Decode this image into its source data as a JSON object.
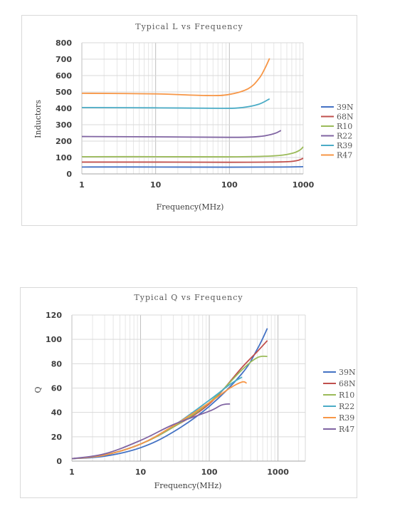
{
  "chart_data": [
    {
      "type": "line",
      "title": "Typical L vs Frequency",
      "xlabel": "Frequency(MHz)",
      "ylabel": "Inductors",
      "x_scale": "log",
      "xlim": [
        1,
        1000
      ],
      "ylim": [
        0,
        800
      ],
      "x_ticks": [
        "1",
        "10",
        "100",
        "1000"
      ],
      "y_ticks": [
        "0",
        "100",
        "200",
        "300",
        "400",
        "500",
        "600",
        "700",
        "800"
      ],
      "grid": true,
      "legend_position": "right",
      "series": [
        {
          "name": "39N",
          "color": "#4472c4",
          "x": [
            1,
            10,
            100,
            500,
            1000
          ],
          "y": [
            42,
            42,
            41,
            42,
            44
          ]
        },
        {
          "name": "68N",
          "color": "#c0504d",
          "x": [
            1,
            10,
            100,
            500,
            800,
            1000
          ],
          "y": [
            72,
            72,
            71,
            73,
            80,
            95
          ]
        },
        {
          "name": "R10",
          "color": "#9bbb59",
          "x": [
            1,
            10,
            100,
            400,
            700,
            900,
            1000
          ],
          "y": [
            105,
            105,
            104,
            110,
            125,
            145,
            165
          ]
        },
        {
          "name": "R22",
          "color": "#8064a2",
          "x": [
            1,
            10,
            100,
            250,
            400,
            500
          ],
          "y": [
            228,
            226,
            223,
            228,
            245,
            265
          ]
        },
        {
          "name": "R39",
          "color": "#4bacc6",
          "x": [
            1,
            10,
            80,
            150,
            250,
            350
          ],
          "y": [
            405,
            403,
            400,
            405,
            425,
            458
          ]
        },
        {
          "name": "R47",
          "color": "#f79646",
          "x": [
            1,
            10,
            50,
            100,
            180,
            250,
            300,
            350
          ],
          "y": [
            492,
            488,
            478,
            485,
            520,
            580,
            640,
            705
          ]
        }
      ]
    },
    {
      "type": "line",
      "title": "Typical Q vs Frequency",
      "xlabel": "Frequency(MHz)",
      "ylabel": "Q",
      "x_scale": "log",
      "xlim": [
        1,
        2500
      ],
      "ylim": [
        0,
        120
      ],
      "x_ticks": [
        "1",
        "10",
        "100",
        "1000"
      ],
      "y_ticks": [
        "0",
        "20",
        "40",
        "60",
        "80",
        "100",
        "120"
      ],
      "grid": true,
      "legend_position": "right",
      "series": [
        {
          "name": "39N",
          "color": "#4472c4",
          "x": [
            1,
            3,
            10,
            30,
            100,
            300,
            500,
            700
          ],
          "y": [
            2,
            4,
            11,
            24,
            45,
            72,
            92,
            109
          ]
        },
        {
          "name": "68N",
          "color": "#c0504d",
          "x": [
            1,
            3,
            10,
            30,
            100,
            300,
            500,
            700
          ],
          "y": [
            2,
            5,
            14,
            28,
            47,
            77,
            90,
            99
          ]
        },
        {
          "name": "R10",
          "color": "#9bbb59",
          "x": [
            1,
            3,
            10,
            30,
            100,
            300,
            500,
            700
          ],
          "y": [
            2,
            5,
            14,
            28,
            48,
            75,
            85,
            86
          ]
        },
        {
          "name": "R22",
          "color": "#4bacc6",
          "x": [
            1,
            3,
            10,
            30,
            100,
            200,
            300
          ],
          "y": [
            2,
            5,
            14,
            29,
            50,
            63,
            69
          ]
        },
        {
          "name": "R39",
          "color": "#f79646",
          "x": [
            1,
            3,
            10,
            30,
            100,
            200,
            300,
            350
          ],
          "y": [
            2,
            5,
            14,
            29,
            48,
            60,
            65,
            64
          ]
        },
        {
          "name": "R47",
          "color": "#8064a2",
          "x": [
            1,
            3,
            10,
            30,
            100,
            150,
            200
          ],
          "y": [
            2,
            6,
            17,
            30,
            41,
            46,
            47
          ]
        }
      ]
    }
  ]
}
